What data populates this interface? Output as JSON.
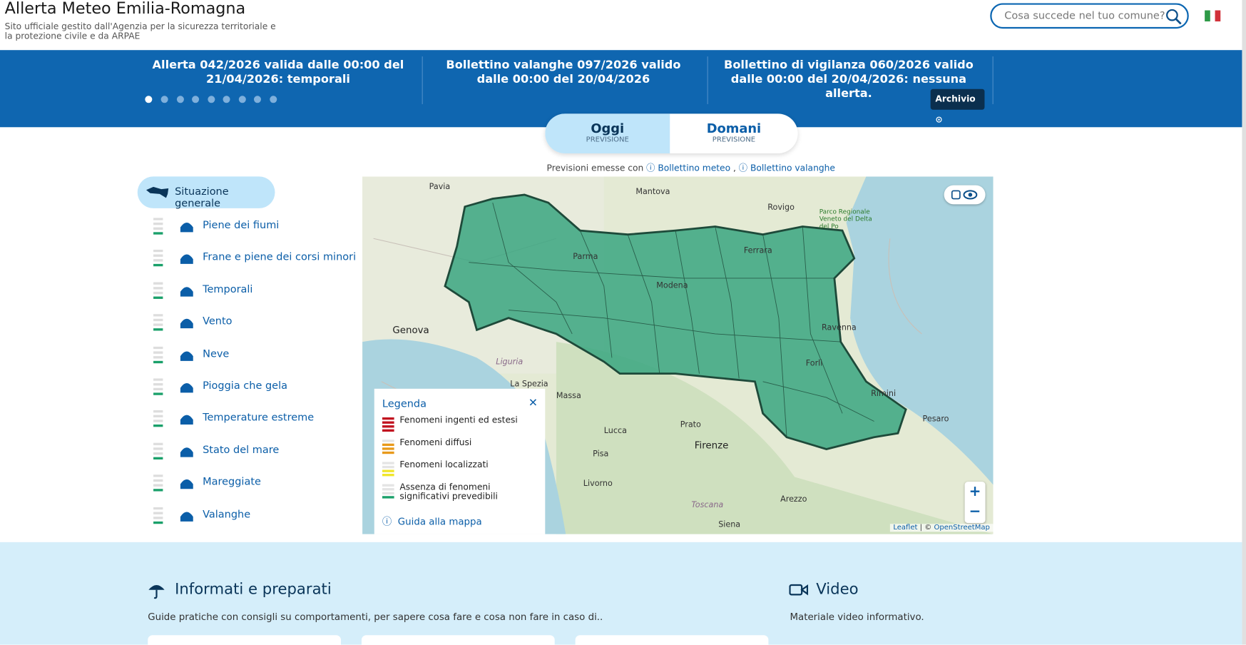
{
  "header": {
    "title": "Allerta Meteo Emilia-Romagna",
    "subtitle_line1": "Sito ufficiale gestito dall'Agenzia per la sicurezza territoriale e",
    "subtitle_line2": "la protezione civile e da ARPAE",
    "search_placeholder": "Cosa succede nel tuo comune?"
  },
  "ticker": {
    "items": [
      "Allerta 042/2026 valida dalle 00:00 del 21/04/2026: temporali",
      "Bollettino valanghe 097/2026 valido dalle 00:00 del 20/04/2026",
      "Bollettino di vigilanza 060/2026 valido dalle 00:00 del 20/04/2026: nessuna allerta."
    ],
    "archive_button": "Archivio"
  },
  "tabs": [
    {
      "label": "Oggi",
      "sub": "PREVISIONE"
    },
    {
      "label": "Domani",
      "sub": "PREVISIONE"
    }
  ],
  "issued": {
    "prefix": "Previsioni emesse con",
    "link1": "Bollettino meteo",
    "separator": ",",
    "link2": "Bollettino valanghe"
  },
  "sidebar": {
    "general": "Situazione generale",
    "items": [
      "Piene dei fiumi",
      "Frane e piene dei corsi minori",
      "Temporali",
      "Vento",
      "Neve",
      "Pioggia che gela",
      "Temperature estreme",
      "Stato del mare",
      "Mareggiate",
      "Valanghe"
    ]
  },
  "legend": {
    "title": "Legenda",
    "items": [
      "Fenomeni ingenti ed estesi",
      "Fenomeni diffusi",
      "Fenomeni localizzati",
      "Assenza di fenomeni significativi prevedibili"
    ],
    "guide": "Guida alla mappa"
  },
  "map": {
    "cities": [
      "Pavia",
      "Mantova",
      "Rovigo",
      "Genova",
      "Massa",
      "La Spezia",
      "Lucca",
      "Prato",
      "Firenze",
      "Pisa",
      "Livorno",
      "Arezzo",
      "Siena",
      "Pesaro",
      "Ravenna",
      "Forlì",
      "Rimini",
      "Ferrara",
      "Parma",
      "Modena",
      "Liguria",
      "Toscana",
      "Parco Regionale Veneto del Delta del Po"
    ],
    "zoom_in": "+",
    "zoom_out": "−",
    "attribution_leaflet": "Leaflet",
    "attribution_sep": "| ©",
    "attribution_osm": "OpenStreetMap"
  },
  "bottom": {
    "informati_title": "Informati e preparati",
    "informati_text": "Guide pratiche con consigli su comportamenti, per sapere cosa fare e cosa non fare in caso di..",
    "video_title": "Video",
    "video_text": "Materiale video informativo."
  }
}
